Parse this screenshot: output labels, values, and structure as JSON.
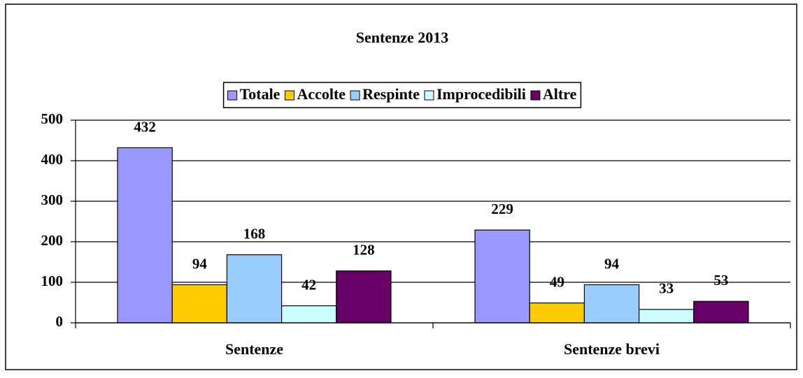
{
  "chart_data": {
    "type": "bar",
    "title": "Sentenze 2013",
    "categories": [
      "Sentenze",
      "Sentenze brevi"
    ],
    "series": [
      {
        "name": "Totale",
        "color": "#9999ff",
        "values": [
          432,
          229
        ]
      },
      {
        "name": "Accolte",
        "color": "#ffcc00",
        "values": [
          94,
          49
        ]
      },
      {
        "name": "Respinte",
        "color": "#99ccff",
        "values": [
          168,
          94
        ]
      },
      {
        "name": "Improcedibili",
        "color": "#ccffff",
        "values": [
          42,
          33
        ]
      },
      {
        "name": "Altre",
        "color": "#660066",
        "values": [
          128,
          53
        ]
      }
    ],
    "ylim": [
      0,
      500
    ],
    "yticks": [
      0,
      100,
      200,
      300,
      400,
      500
    ],
    "grid": true,
    "legend": "top"
  }
}
